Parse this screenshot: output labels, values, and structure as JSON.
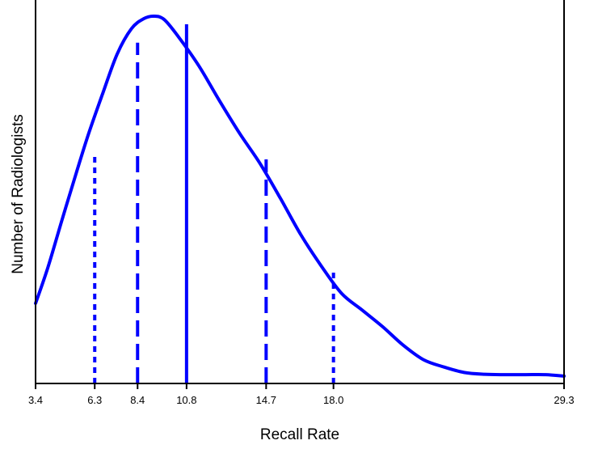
{
  "chart_data": {
    "type": "line",
    "xlabel": "Recall Rate",
    "ylabel": "Number of Radiologists",
    "xlim": [
      3.4,
      29.3
    ],
    "ylim": [
      0,
      1
    ],
    "x_ticks": [
      "3.4",
      "6.3",
      "8.4",
      "10.8",
      "14.7",
      "18.0",
      "29.3"
    ],
    "grid": false,
    "series": [
      {
        "name": "",
        "color": "#0000ff",
        "x": [
          3.4,
          4.0,
          4.7,
          5.4,
          6.0,
          6.7,
          7.4,
          8.1,
          8.7,
          9.2,
          9.7,
          10.4,
          11.4,
          12.4,
          13.4,
          14.4,
          15.4,
          16.4,
          17.4,
          18.4,
          19.4,
          20.4,
          21.4,
          22.4,
          23.4,
          24.4,
          25.4,
          26.4,
          27.4,
          28.4,
          29.3
        ],
        "values": [
          0.218,
          0.315,
          0.446,
          0.574,
          0.68,
          0.791,
          0.897,
          0.966,
          0.993,
          1.0,
          0.991,
          0.944,
          0.865,
          0.771,
          0.681,
          0.599,
          0.504,
          0.405,
          0.32,
          0.245,
          0.2,
          0.155,
          0.105,
          0.065,
          0.045,
          0.03,
          0.025,
          0.024,
          0.024,
          0.024,
          0.02
        ]
      }
    ],
    "reference_lines": [
      {
        "x": 6.3,
        "style": "dotted",
        "height": 0.626
      },
      {
        "x": 8.4,
        "style": "dashed",
        "height": 0.928
      },
      {
        "x": 10.8,
        "style": "solid",
        "height": 0.978
      },
      {
        "x": 14.7,
        "style": "dashed",
        "height": 0.61
      },
      {
        "x": 18.0,
        "style": "dotted",
        "height": 0.315
      }
    ]
  }
}
